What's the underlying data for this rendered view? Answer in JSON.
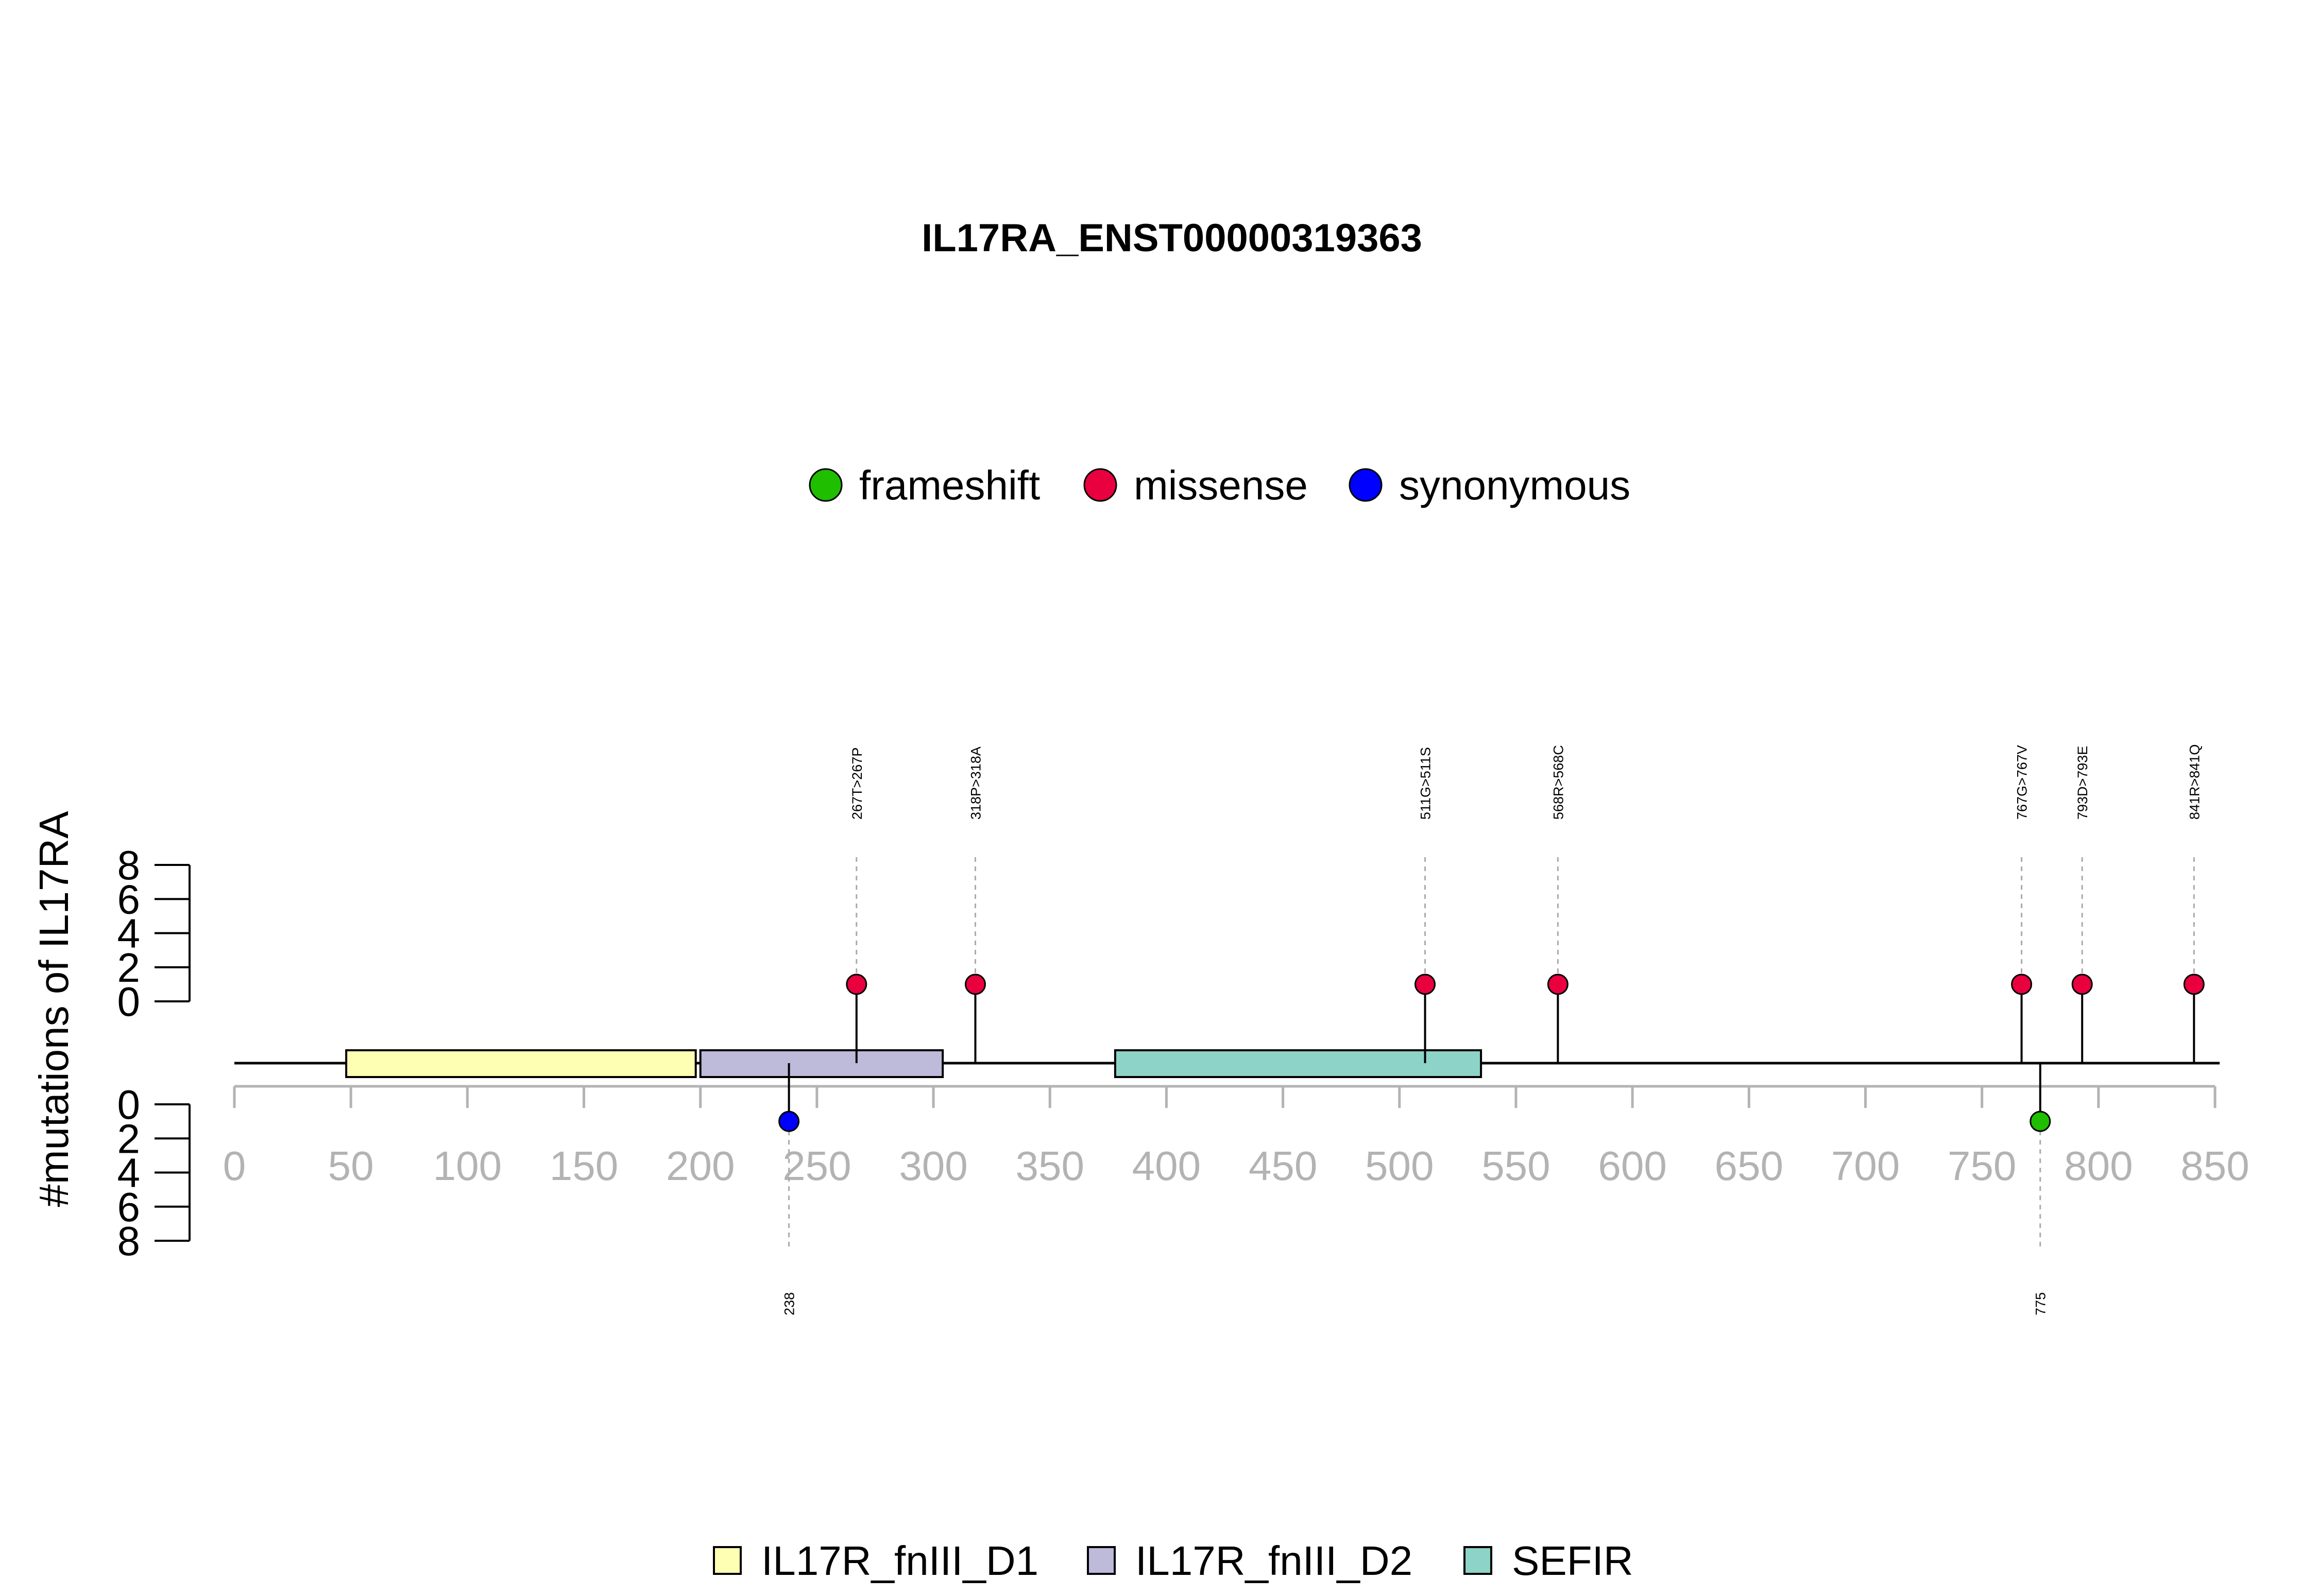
{
  "chart_data": {
    "type": "lollipop",
    "title": "IL17RA_ENST00000319363",
    "ylabel": "#mutations of IL17RA",
    "protein_length": 852,
    "xlim": [
      0,
      850
    ],
    "x_ticks": [
      0,
      50,
      100,
      150,
      200,
      250,
      300,
      350,
      400,
      450,
      500,
      550,
      600,
      650,
      700,
      750,
      800,
      850
    ],
    "y_ticks_top": [
      0,
      2,
      4,
      6,
      8
    ],
    "y_ticks_bottom": [
      0,
      2,
      4,
      6,
      8
    ],
    "ylim": [
      0,
      8
    ],
    "mutation_types": [
      {
        "name": "frameshift",
        "color": "#1fbf00"
      },
      {
        "name": "missense",
        "color": "#e8003f"
      },
      {
        "name": "synonymous",
        "color": "#0000ff"
      }
    ],
    "mutations_top": [
      {
        "position": 267,
        "label": "267T>267P",
        "count": 1,
        "type": "missense"
      },
      {
        "position": 318,
        "label": "318P>318A",
        "count": 1,
        "type": "missense"
      },
      {
        "position": 511,
        "label": "511G>511S",
        "count": 1,
        "type": "missense"
      },
      {
        "position": 568,
        "label": "568R>568C",
        "count": 1,
        "type": "missense"
      },
      {
        "position": 767,
        "label": "767G>767V",
        "count": 1,
        "type": "missense"
      },
      {
        "position": 793,
        "label": "793D>793E",
        "count": 1,
        "type": "missense"
      },
      {
        "position": 841,
        "label": "841R>841Q",
        "count": 1,
        "type": "missense"
      }
    ],
    "mutations_bottom": [
      {
        "position": 238,
        "label": "238",
        "count": 1,
        "type": "synonymous"
      },
      {
        "position": 775,
        "label": "775",
        "count": 1,
        "type": "frameshift"
      }
    ],
    "domains": [
      {
        "name": "IL17R_fnIII_D1",
        "start": 48,
        "end": 198,
        "color": "#ffffb3"
      },
      {
        "name": "IL17R_fnIII_D2",
        "start": 200,
        "end": 304,
        "color": "#bebada"
      },
      {
        "name": "SEFIR",
        "start": 378,
        "end": 535,
        "color": "#8dd3c7"
      }
    ]
  }
}
